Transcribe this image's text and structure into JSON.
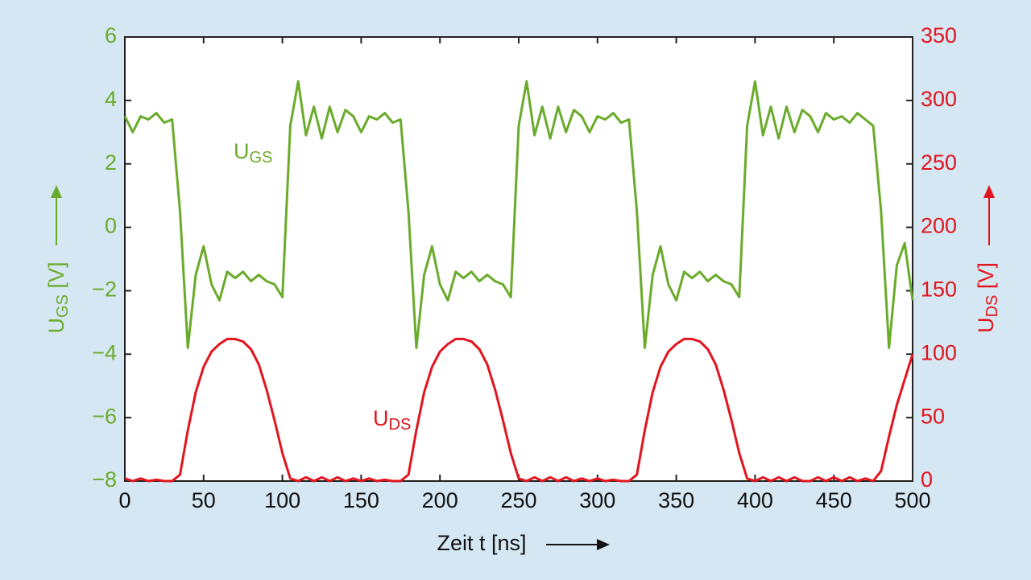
{
  "chart_data": {
    "type": "line",
    "x_label": "Zeit t [ns]",
    "y_label": "UGS [V]",
    "y2_label": "UDS [V]",
    "x": [
      0,
      5,
      10,
      15,
      20,
      25,
      30,
      35,
      40,
      45,
      50,
      55,
      60,
      65,
      70,
      75,
      80,
      85,
      90,
      95,
      100,
      105,
      110,
      115,
      120,
      125,
      130,
      135,
      140,
      145,
      150,
      155,
      160,
      165,
      170,
      175,
      180,
      185,
      190,
      195,
      200,
      205,
      210,
      215,
      220,
      225,
      230,
      235,
      240,
      245,
      250,
      255,
      260,
      265,
      270,
      275,
      280,
      285,
      290,
      295,
      300,
      305,
      310,
      315,
      320,
      325,
      330,
      335,
      340,
      345,
      350,
      355,
      360,
      365,
      370,
      375,
      380,
      385,
      390,
      395,
      400,
      405,
      410,
      415,
      420,
      425,
      430,
      435,
      440,
      445,
      450,
      455,
      460,
      465,
      470,
      475,
      480,
      485,
      490,
      495,
      500
    ],
    "xlim": [
      0,
      500
    ],
    "xticks": [
      0,
      50,
      100,
      150,
      200,
      250,
      300,
      350,
      400,
      450,
      500
    ],
    "ylim": [
      -8,
      6
    ],
    "yticks": [
      {
        "value": -8,
        "label": "−8"
      },
      {
        "value": -6,
        "label": "−6"
      },
      {
        "value": -4,
        "label": "−4"
      },
      {
        "value": -2,
        "label": "−2"
      },
      0,
      2,
      4,
      6
    ],
    "y2lim": [
      0,
      350
    ],
    "y2ticks": [
      0,
      50,
      100,
      150,
      200,
      250,
      300,
      350
    ],
    "grid": false,
    "series": [
      {
        "name": "UGS",
        "color": "#6aab2b",
        "axis": "y",
        "values": [
          3.5,
          3.0,
          3.5,
          3.4,
          3.6,
          3.3,
          3.4,
          0.5,
          -3.8,
          -1.5,
          -0.6,
          -1.8,
          -2.3,
          -1.4,
          -1.6,
          -1.4,
          -1.7,
          -1.5,
          -1.7,
          -1.8,
          -2.2,
          3.2,
          4.6,
          2.9,
          3.8,
          2.8,
          3.8,
          3.0,
          3.7,
          3.5,
          3.0,
          3.5,
          3.4,
          3.6,
          3.3,
          3.4,
          0.5,
          -3.8,
          -1.5,
          -0.6,
          -1.8,
          -2.3,
          -1.4,
          -1.6,
          -1.4,
          -1.7,
          -1.5,
          -1.7,
          -1.8,
          -2.2,
          3.2,
          4.6,
          2.9,
          3.8,
          2.8,
          3.8,
          3.0,
          3.7,
          3.5,
          3.0,
          3.5,
          3.4,
          3.6,
          3.3,
          3.4,
          0.5,
          -3.8,
          -1.5,
          -0.6,
          -1.8,
          -2.3,
          -1.4,
          -1.6,
          -1.4,
          -1.7,
          -1.5,
          -1.7,
          -1.8,
          -2.2,
          3.2,
          4.6,
          2.9,
          3.8,
          2.8,
          3.8,
          3.0,
          3.7,
          3.5,
          3.0,
          3.6,
          3.4,
          3.5,
          3.3,
          3.6,
          3.4,
          3.2,
          0.5,
          -3.8,
          -1.2,
          -0.5,
          -2.3
        ]
      },
      {
        "name": "UDS",
        "color": "#e3141d",
        "axis": "y2",
        "values": [
          2,
          0,
          2,
          0,
          1,
          0,
          0,
          5,
          40,
          70,
          90,
          102,
          108,
          112,
          112,
          110,
          104,
          92,
          72,
          48,
          22,
          2,
          0,
          3,
          0,
          3,
          0,
          3,
          0,
          2,
          0,
          2,
          0,
          1,
          0,
          0,
          5,
          40,
          70,
          90,
          102,
          108,
          112,
          112,
          110,
          104,
          92,
          72,
          48,
          22,
          2,
          0,
          3,
          0,
          3,
          0,
          3,
          0,
          2,
          0,
          2,
          0,
          1,
          0,
          0,
          5,
          40,
          70,
          90,
          102,
          108,
          112,
          112,
          110,
          104,
          92,
          72,
          48,
          22,
          2,
          0,
          3,
          0,
          3,
          0,
          3,
          0,
          0,
          3,
          0,
          3,
          0,
          3,
          0,
          2,
          0,
          8,
          35,
          60,
          80,
          100
        ]
      }
    ]
  }
}
